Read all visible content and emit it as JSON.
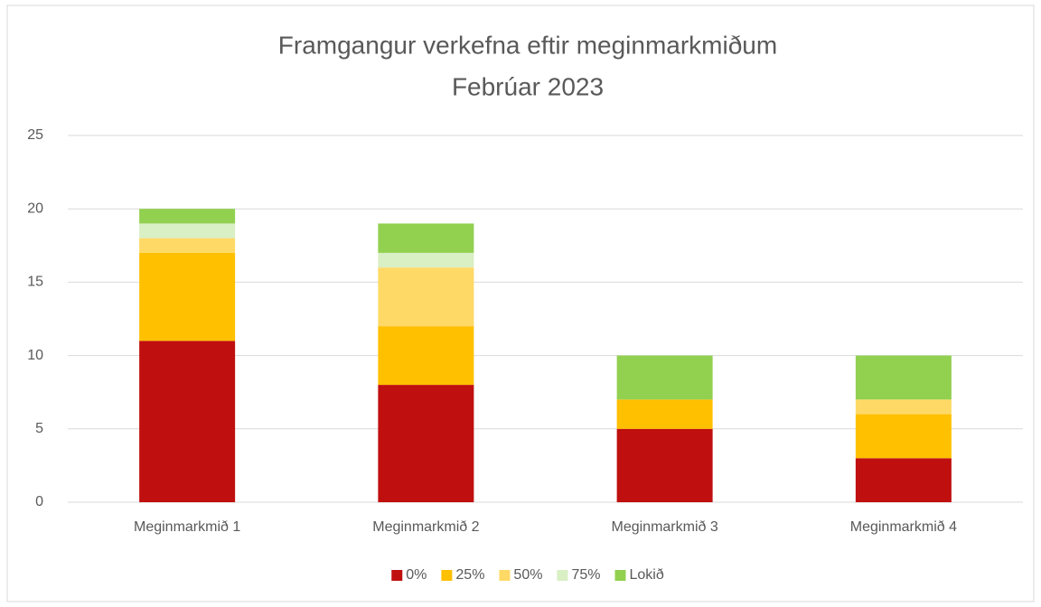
{
  "chart_data": {
    "type": "stacked_bar",
    "title": "Framgangur verkefna eftir meginmarkmiðum",
    "subtitle": "Febrúar 2023",
    "categories": [
      "Meginmarkmið 1",
      "Meginmarkmið 2",
      "Meginmarkmið 3",
      "Meginmarkmið 4"
    ],
    "series": [
      {
        "name": "0%",
        "color": "#c00f0f",
        "values": [
          11,
          8,
          5,
          3
        ]
      },
      {
        "name": "25%",
        "color": "#ffc000",
        "values": [
          6,
          4,
          2,
          3
        ]
      },
      {
        "name": "50%",
        "color": "#ffd966",
        "values": [
          1,
          4,
          0,
          1
        ]
      },
      {
        "name": "75%",
        "color": "#d9efc4",
        "values": [
          1,
          1,
          0,
          0
        ]
      },
      {
        "name": "Lokið",
        "color": "#92d050",
        "values": [
          1,
          2,
          3,
          3
        ]
      }
    ],
    "ylim": [
      0,
      25
    ],
    "yticks": [
      0,
      5,
      10,
      15,
      20,
      25
    ],
    "grid": true,
    "legend": "bottom"
  }
}
